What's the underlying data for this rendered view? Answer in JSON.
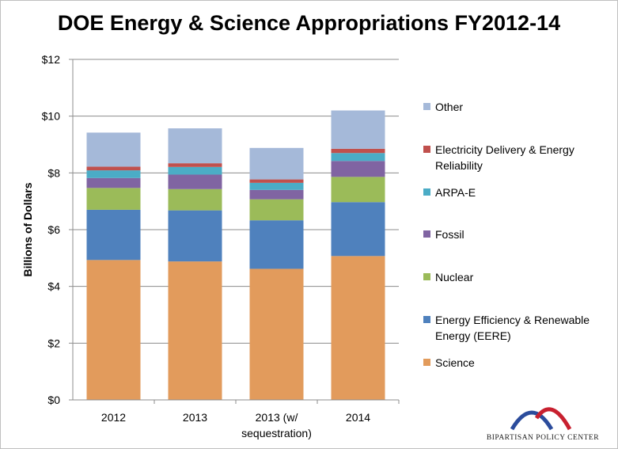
{
  "chart_data": {
    "type": "bar",
    "stacked": true,
    "title": "DOE Energy & Science Appropriations FY2012-14",
    "ylabel": "Billions of Dollars",
    "xlabel": "",
    "ylim": [
      0,
      12
    ],
    "yticks": [
      "$0",
      "$2",
      "$4",
      "$6",
      "$8",
      "$10",
      "$12"
    ],
    "categories": [
      [
        "2012"
      ],
      [
        "2013"
      ],
      [
        "2013 (w/",
        "sequestration)"
      ],
      [
        "2014"
      ]
    ],
    "grid": "horizontal",
    "legend_position": "right",
    "series": [
      {
        "name": "Science",
        "color": "#e29b5c",
        "values": [
          4.93,
          4.88,
          4.62,
          5.07
        ]
      },
      {
        "name": "Energy Efficiency & Renewable Energy (EERE)",
        "color": "#4f81bd",
        "values": [
          1.77,
          1.8,
          1.71,
          1.9
        ]
      },
      {
        "name": "Nuclear",
        "color": "#9bbb59",
        "values": [
          0.77,
          0.75,
          0.74,
          0.89
        ]
      },
      {
        "name": "Fossil",
        "color": "#8064a2",
        "values": [
          0.35,
          0.51,
          0.33,
          0.56
        ]
      },
      {
        "name": "ARPA-E",
        "color": "#4bacc6",
        "values": [
          0.27,
          0.27,
          0.25,
          0.28
        ]
      },
      {
        "name": "Electricity Delivery & Energy Reliability",
        "color": "#c0504d",
        "values": [
          0.13,
          0.13,
          0.12,
          0.15
        ]
      },
      {
        "name": "Other",
        "color": "#a5b9d9",
        "values": [
          1.2,
          1.23,
          1.11,
          1.35
        ]
      }
    ],
    "legend_order": [
      6,
      5,
      4,
      3,
      2,
      1,
      0
    ],
    "legend_lines": {
      "0": [
        "Science"
      ],
      "1": [
        "Energy Efficiency & Renewable",
        "Energy (EERE)"
      ],
      "2": [
        "Nuclear"
      ],
      "3": [
        "Fossil"
      ],
      "4": [
        "ARPA-E"
      ],
      "5": [
        "Electricity Delivery & Energy",
        "Reliability"
      ],
      "6": [
        "Other"
      ]
    }
  },
  "logo": {
    "text": "BIPARTISAN POLICY CENTER",
    "colors": {
      "blue": "#2b4c9c",
      "red": "#c8202f"
    }
  }
}
